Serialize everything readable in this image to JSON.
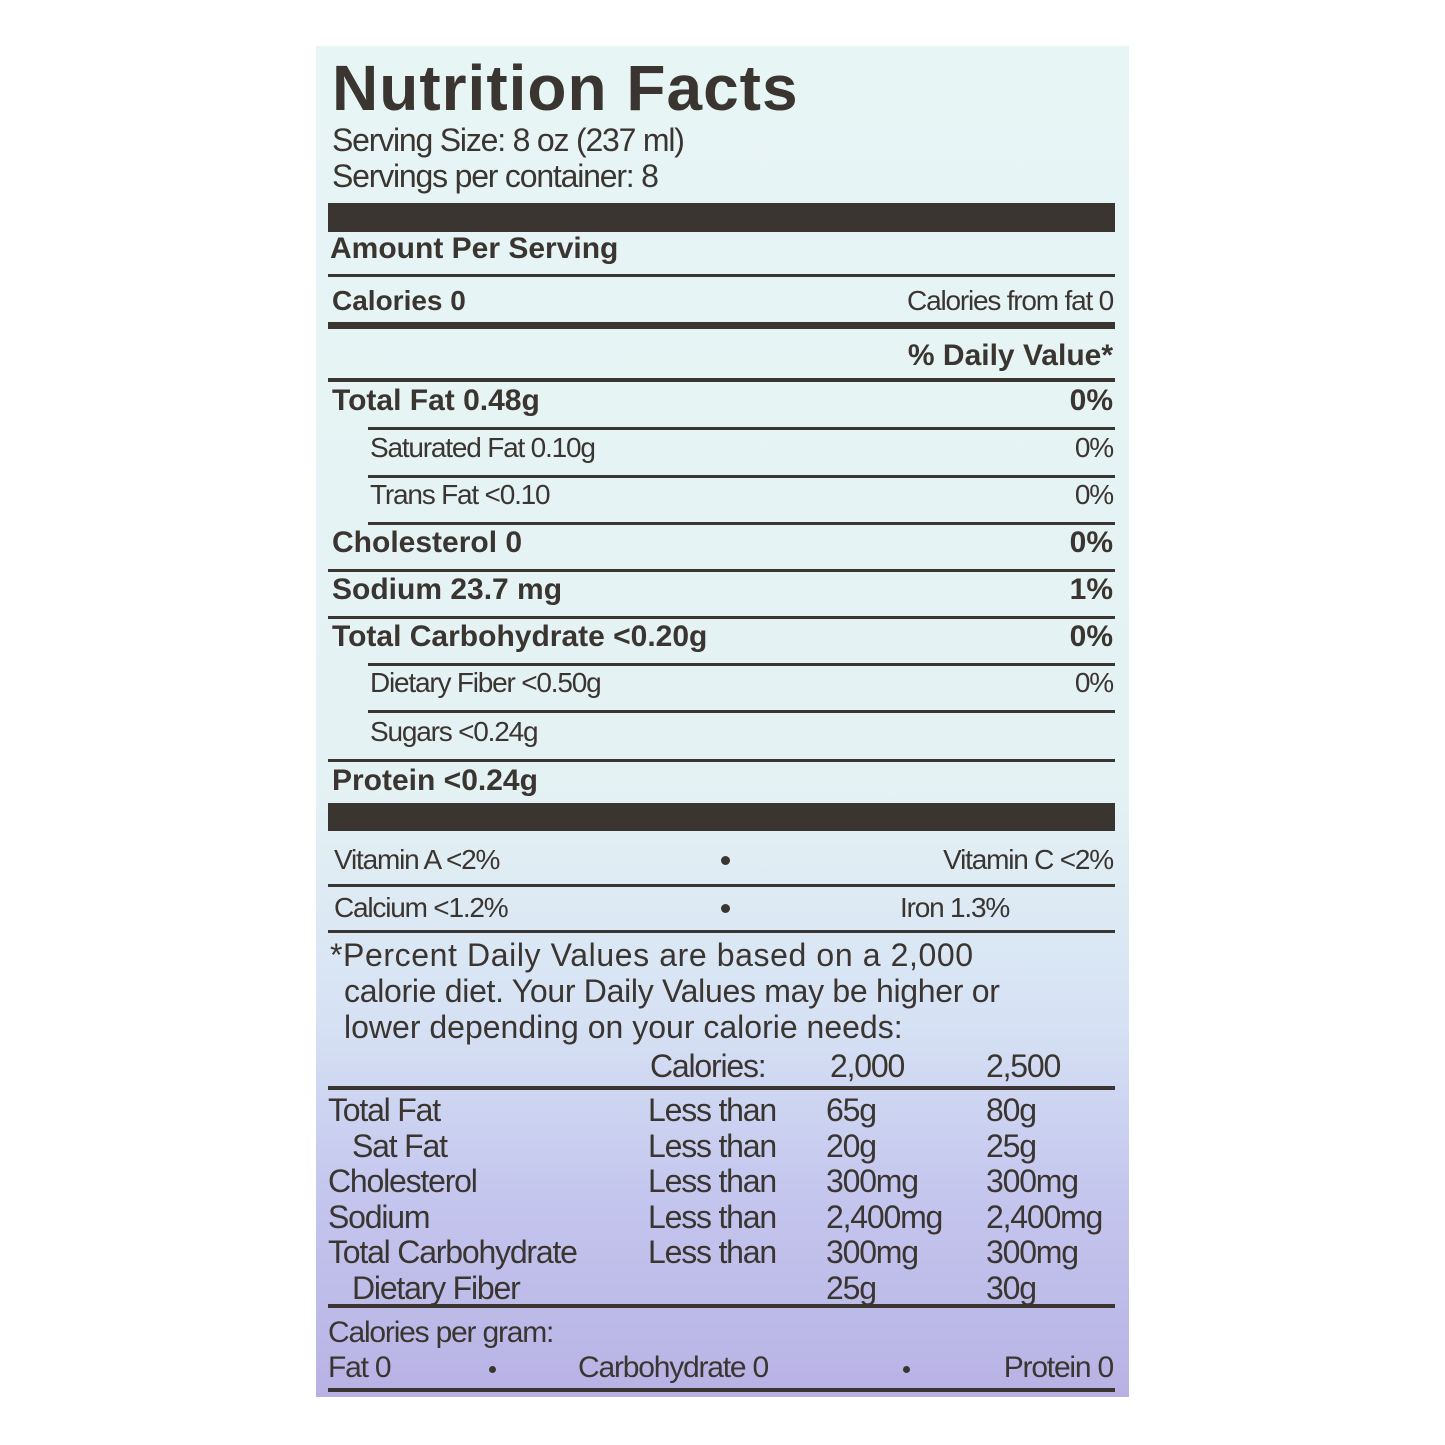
{
  "title": "Nutrition Facts",
  "serving_size": "Serving Size: 8 oz (237 ml)",
  "servings_per_container": "Servings per container: 8",
  "amount_per_serving": "Amount Per Serving",
  "calories": "Calories 0",
  "calories_from_fat": "Calories from fat 0",
  "daily_value_header": "% Daily Value*",
  "nutrients": [
    {
      "label": "Total Fat 0.48g",
      "dv": "0%",
      "bold": true
    },
    {
      "label": "Saturated Fat 0.10g",
      "dv": "0%",
      "bold": false
    },
    {
      "label": "Trans Fat <0.10",
      "dv": "0%",
      "bold": false
    },
    {
      "label": "Cholesterol 0",
      "dv": "0%",
      "bold": true
    },
    {
      "label": "Sodium 23.7 mg",
      "dv": "1%",
      "bold": true
    },
    {
      "label": "Total Carbohydrate <0.20g",
      "dv": "0%",
      "bold": true
    },
    {
      "label": "Dietary Fiber <0.50g",
      "dv": "0%",
      "bold": false
    },
    {
      "label": "Sugars <0.24g",
      "dv": "",
      "bold": false
    },
    {
      "label": "Protein <0.24g",
      "dv": "",
      "bold": true
    }
  ],
  "vitamins": [
    {
      "left": "Vitamin A <2%",
      "right": "Vitamin C <2%"
    },
    {
      "left": "Calcium <1.2%",
      "right": "Iron 1.3%"
    }
  ],
  "footnote": [
    "*Percent Daily Values are based on a 2,000",
    "calorie diet. Your Daily Values may be higher or",
    "lower depending on your calorie needs:"
  ],
  "reference_table": {
    "header": {
      "label": "Calories:",
      "col1": "2,000",
      "col2": "2,500"
    },
    "rows": [
      {
        "nutrient": "Total Fat",
        "qualifier": "Less than",
        "col1": "65g",
        "col2": "80g"
      },
      {
        "nutrient": "Sat Fat",
        "qualifier": "Less than",
        "col1": "20g",
        "col2": "25g"
      },
      {
        "nutrient": "Cholesterol",
        "qualifier": "Less than",
        "col1": "300mg",
        "col2": "300mg"
      },
      {
        "nutrient": "Sodium",
        "qualifier": "Less than",
        "col1": "2,400mg",
        "col2": "2,400mg"
      },
      {
        "nutrient": "Total Carbohydrate",
        "qualifier": "Less than",
        "col1": "300mg",
        "col2": "300mg"
      },
      {
        "nutrient": "Dietary Fiber",
        "qualifier": "",
        "col1": "25g",
        "col2": "30g"
      }
    ]
  },
  "calories_per_gram": {
    "label": "Calories per gram:",
    "fat": "Fat 0",
    "carbohydrate": "Carbohydrate 0",
    "protein": "Protein 0"
  },
  "colors": {
    "ink": "#3a3530",
    "top_bg": "#e8f5f5",
    "bottom_bg": "#b8b2e4"
  }
}
